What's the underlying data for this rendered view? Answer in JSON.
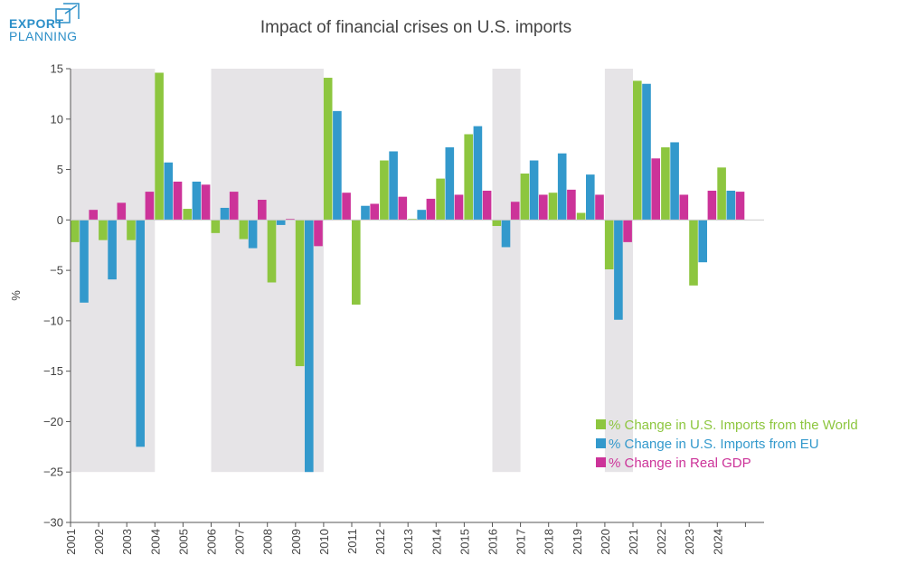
{
  "logo": {
    "line1": "EXPORT",
    "line2": "PLANNING"
  },
  "colors": {
    "world": "#8dc63f",
    "eu": "#3399cc",
    "gdp": "#cc3399",
    "crisis": "#e6e4e7",
    "axis": "#555555",
    "logo": "#2c8fc8"
  },
  "chart_data": {
    "type": "bar",
    "title": "Impact of financial crises on U.S. imports",
    "ylabel": "%",
    "xlabel": "",
    "ylim": [
      -30,
      15
    ],
    "yticks": [
      15,
      10,
      5,
      0,
      -5,
      -10,
      -15,
      -20,
      -25,
      -30
    ],
    "ytick_labels": [
      "15",
      "10",
      "5",
      "0",
      "−5",
      "−10",
      "−15",
      "−20",
      "−25",
      "−30"
    ],
    "categories": [
      "2001",
      "2002",
      "2003",
      "2004",
      "2005",
      "2006",
      "2007",
      "2008",
      "2009",
      "2010",
      "2011",
      "2012",
      "2013",
      "2014",
      "2015",
      "2016",
      "2017",
      "2018",
      "2019",
      "2020",
      "2021",
      "2022",
      "2023",
      "2024"
    ],
    "series": [
      {
        "name": "% Change in U.S. Imports from the World",
        "color": "#8dc63f",
        "values": [
          -2.2,
          -2.0,
          -2.0,
          14.6,
          1.1,
          -1.3,
          -1.9,
          -6.2,
          -14.5,
          14.1,
          -8.4,
          5.9,
          0.1,
          4.1,
          8.5,
          -0.6,
          4.6,
          2.7,
          0.7,
          -4.9,
          13.8,
          7.2,
          -6.5,
          5.2
        ]
      },
      {
        "name": "% Change in U.S. Imports from EU",
        "color": "#3399cc",
        "values": [
          -8.2,
          -5.9,
          -22.5,
          5.7,
          3.8,
          1.2,
          -2.8,
          -0.5,
          -25.0,
          10.8,
          1.4,
          6.8,
          1.0,
          7.2,
          9.3,
          -2.7,
          5.9,
          6.6,
          4.5,
          -9.9,
          13.5,
          7.7,
          -4.2,
          2.9
        ]
      },
      {
        "name": "% Change in Real GDP",
        "color": "#cc3399",
        "values": [
          1.0,
          1.7,
          2.8,
          3.8,
          3.5,
          2.8,
          2.0,
          0.1,
          -2.6,
          2.7,
          1.6,
          2.3,
          2.1,
          2.5,
          2.9,
          1.8,
          2.5,
          3.0,
          2.5,
          -2.2,
          6.1,
          2.5,
          2.9,
          2.8
        ]
      }
    ],
    "crisis_periods": [
      [
        "2001",
        "2003"
      ],
      [
        "2006",
        "2009"
      ],
      [
        "2016",
        "2016"
      ],
      [
        "2020",
        "2020"
      ]
    ],
    "crisis_ymin": -25,
    "legend_position": "bottom-right",
    "grid": false
  }
}
